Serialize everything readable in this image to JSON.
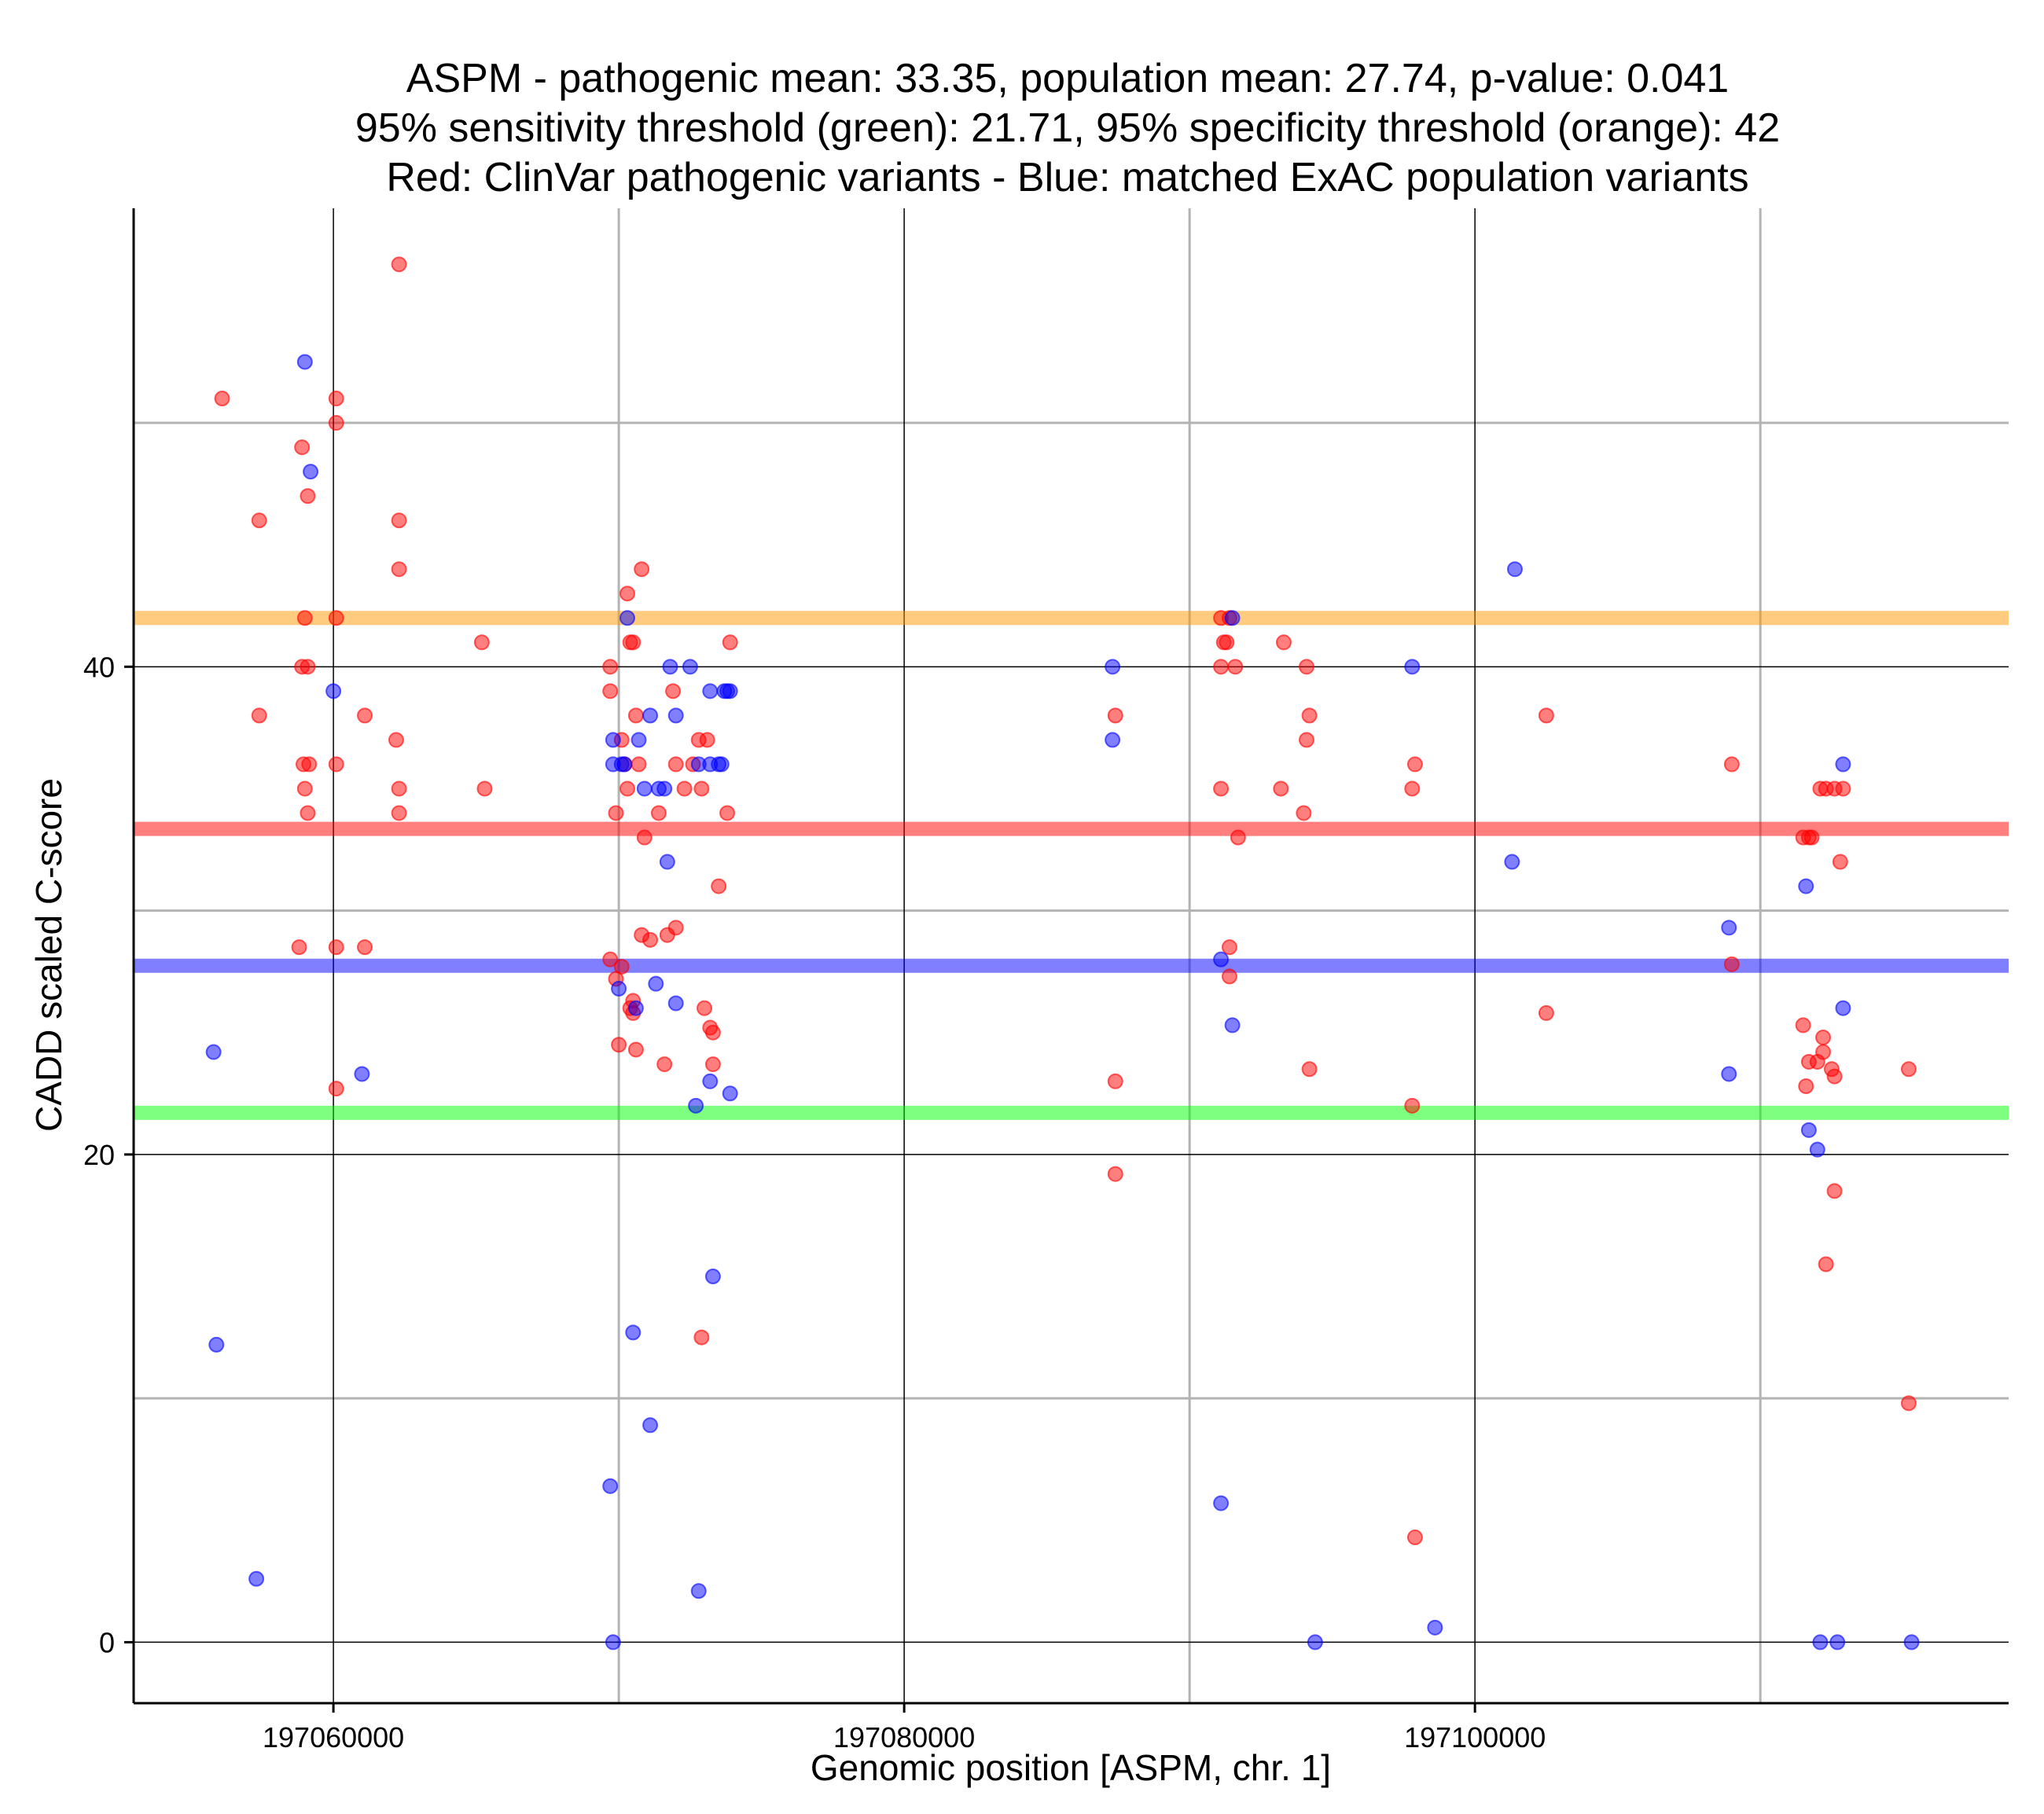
{
  "chart_data": {
    "type": "scatter",
    "title": [
      "ASPM - pathogenic mean: 33.35, population mean: 27.74, p-value: 0.041",
      "95% sensitivity threshold (green): 21.71, 95% specificity threshold (orange): 42",
      "Red: ClinVar pathogenic variants - Blue: matched ExAC population variants"
    ],
    "xlabel": "Genomic position [ASPM, chr. 1]",
    "ylabel": "CADD scaled C-score",
    "xlim": [
      197053000,
      197118700
    ],
    "ylim": [
      -2.5,
      58.8
    ],
    "x_ticks": [
      197060000,
      197080000,
      197100000
    ],
    "y_ticks": [
      0,
      20,
      40
    ],
    "major_grid_x": [
      197060000,
      197080000,
      197100000
    ],
    "minor_grid_x": [
      197070000,
      197090000,
      197110000
    ],
    "major_grid_y": [
      0,
      20,
      40
    ],
    "minor_grid_y": [
      10,
      30,
      50
    ],
    "colors": {
      "pathogenic": "#ff0000",
      "population": "#0000ff",
      "sensitivity": "#00ff00",
      "specificity": "#ff9900",
      "grid_major": "#000000",
      "grid_minor": "#b3b3b3"
    },
    "hlines": [
      {
        "name": "specificity threshold",
        "value": 42,
        "color": "#ff9900"
      },
      {
        "name": "pathogenic mean",
        "value": 33.35,
        "color": "#ff0000"
      },
      {
        "name": "population mean",
        "value": 27.74,
        "color": "#0000ff"
      },
      {
        "name": "sensitivity threshold",
        "value": 21.71,
        "color": "#00ff00"
      }
    ],
    "series": [
      {
        "name": "ClinVar pathogenic variants",
        "color": "#ff0000",
        "points": [
          [
            197056100,
            51
          ],
          [
            197057400,
            46
          ],
          [
            197058900,
            49
          ],
          [
            197059100,
            47
          ],
          [
            197059000,
            42
          ],
          [
            197058900,
            40
          ],
          [
            197059100,
            40
          ],
          [
            197058950,
            36
          ],
          [
            197059150,
            36
          ],
          [
            197059000,
            35
          ],
          [
            197059100,
            34
          ],
          [
            197058800,
            28.5
          ],
          [
            197057400,
            38
          ],
          [
            197060100,
            51
          ],
          [
            197060100,
            50
          ],
          [
            197060100,
            42
          ],
          [
            197060100,
            36
          ],
          [
            197060100,
            28.5
          ],
          [
            197060100,
            22.7
          ],
          [
            197061100,
            38
          ],
          [
            197061100,
            28.5
          ],
          [
            197062300,
            56.5
          ],
          [
            197062300,
            46
          ],
          [
            197062300,
            44
          ],
          [
            197062200,
            37
          ],
          [
            197062300,
            35
          ],
          [
            197062300,
            34
          ],
          [
            197065200,
            41
          ],
          [
            197065300,
            35
          ],
          [
            197069700,
            40
          ],
          [
            197069700,
            39
          ],
          [
            197069900,
            34
          ],
          [
            197070100,
            37
          ],
          [
            197070200,
            36
          ],
          [
            197070300,
            35
          ],
          [
            197070300,
            43
          ],
          [
            197070400,
            41
          ],
          [
            197070500,
            41
          ],
          [
            197070600,
            38
          ],
          [
            197070700,
            36
          ],
          [
            197070800,
            44
          ],
          [
            197070900,
            33
          ],
          [
            197070800,
            29
          ],
          [
            197071100,
            28.8
          ],
          [
            197069700,
            28
          ],
          [
            197069900,
            27.2
          ],
          [
            197070100,
            27.7
          ],
          [
            197070500,
            26.3
          ],
          [
            197070500,
            25.8
          ],
          [
            197070000,
            24.5
          ],
          [
            197070600,
            24.3
          ],
          [
            197071600,
            23.7
          ],
          [
            197070400,
            26
          ],
          [
            197071400,
            34
          ],
          [
            197071700,
            29
          ],
          [
            197072000,
            29.3
          ],
          [
            197071900,
            39
          ],
          [
            197072000,
            36
          ],
          [
            197072300,
            35
          ],
          [
            197072600,
            36
          ],
          [
            197072800,
            37
          ],
          [
            197073100,
            37
          ],
          [
            197072900,
            35
          ],
          [
            197073000,
            26
          ],
          [
            197073200,
            25.2
          ],
          [
            197073300,
            25
          ],
          [
            197073300,
            23.7
          ],
          [
            197073500,
            31
          ],
          [
            197073800,
            34
          ],
          [
            197073900,
            41
          ],
          [
            197072900,
            12.5
          ],
          [
            197087400,
            38
          ],
          [
            197087400,
            23
          ],
          [
            197087400,
            19.2
          ],
          [
            197091100,
            42
          ],
          [
            197091200,
            41
          ],
          [
            197091300,
            41
          ],
          [
            197091100,
            40
          ],
          [
            197091400,
            42
          ],
          [
            197091600,
            40
          ],
          [
            197091100,
            35
          ],
          [
            197091400,
            28.5
          ],
          [
            197091400,
            27.3
          ],
          [
            197091700,
            33
          ],
          [
            197093300,
            41
          ],
          [
            197093200,
            35
          ],
          [
            197094100,
            40
          ],
          [
            197094200,
            38
          ],
          [
            197094100,
            37
          ],
          [
            197094000,
            34
          ],
          [
            197094200,
            23.5
          ],
          [
            197097800,
            35
          ],
          [
            197097900,
            36
          ],
          [
            197097800,
            22
          ],
          [
            197097900,
            4.3
          ],
          [
            197102500,
            38
          ],
          [
            197102500,
            25.8
          ],
          [
            197109000,
            36
          ],
          [
            197109000,
            27.8
          ],
          [
            197111500,
            33
          ],
          [
            197111700,
            33
          ],
          [
            197111800,
            33
          ],
          [
            197112100,
            35
          ],
          [
            197112300,
            35
          ],
          [
            197112600,
            35
          ],
          [
            197112900,
            35
          ],
          [
            197112800,
            32
          ],
          [
            197111500,
            25.3
          ],
          [
            197112200,
            24.8
          ],
          [
            197112000,
            23.8
          ],
          [
            197111700,
            23.8
          ],
          [
            197112200,
            24.2
          ],
          [
            197112500,
            23.5
          ],
          [
            197112600,
            23.2
          ],
          [
            197111600,
            22.8
          ],
          [
            197112600,
            18.5
          ],
          [
            197112300,
            15.5
          ],
          [
            197115200,
            23.5
          ],
          [
            197115200,
            9.8
          ]
        ]
      },
      {
        "name": "matched ExAC population variants",
        "color": "#0000ff",
        "points": [
          [
            197059000,
            52.5
          ],
          [
            197059200,
            48
          ],
          [
            197060000,
            39
          ],
          [
            197061000,
            23.3
          ],
          [
            197055800,
            24.2
          ],
          [
            197055900,
            12.2
          ],
          [
            197057300,
            2.6
          ],
          [
            197070300,
            42
          ],
          [
            197069800,
            37
          ],
          [
            197069800,
            36
          ],
          [
            197070100,
            36
          ],
          [
            197070200,
            36
          ],
          [
            197070700,
            37
          ],
          [
            197070900,
            35
          ],
          [
            197071100,
            38
          ],
          [
            197071400,
            35
          ],
          [
            197071600,
            35
          ],
          [
            197071700,
            32
          ],
          [
            197071800,
            40
          ],
          [
            197072000,
            38
          ],
          [
            197072500,
            40
          ],
          [
            197072800,
            36
          ],
          [
            197073200,
            36
          ],
          [
            197073200,
            39
          ],
          [
            197073500,
            36
          ],
          [
            197073600,
            36
          ],
          [
            197073700,
            39
          ],
          [
            197073800,
            39
          ],
          [
            197073900,
            39
          ],
          [
            197071300,
            27
          ],
          [
            197070600,
            26
          ],
          [
            197070000,
            26.8
          ],
          [
            197072000,
            26.2
          ],
          [
            197073200,
            23
          ],
          [
            197072700,
            22
          ],
          [
            197073900,
            22.5
          ],
          [
            197073300,
            15
          ],
          [
            197070500,
            12.7
          ],
          [
            197071100,
            8.9
          ],
          [
            197069700,
            6.4
          ],
          [
            197072800,
            2.1
          ],
          [
            197069800,
            0
          ],
          [
            197087300,
            40
          ],
          [
            197087300,
            37
          ],
          [
            197091100,
            28
          ],
          [
            197091500,
            42
          ],
          [
            197091500,
            25.3
          ],
          [
            197091100,
            5.7
          ],
          [
            197094400,
            0
          ],
          [
            197097800,
            40
          ],
          [
            197098600,
            0.6
          ],
          [
            197101400,
            44
          ],
          [
            197101300,
            32
          ],
          [
            197108900,
            29.3
          ],
          [
            197108900,
            23.3
          ],
          [
            197111600,
            31
          ],
          [
            197111700,
            21
          ],
          [
            197112000,
            20.2
          ],
          [
            197112900,
            36
          ],
          [
            197112900,
            26
          ],
          [
            197112100,
            0
          ],
          [
            197112700,
            0
          ],
          [
            197115300,
            0
          ]
        ]
      }
    ]
  }
}
